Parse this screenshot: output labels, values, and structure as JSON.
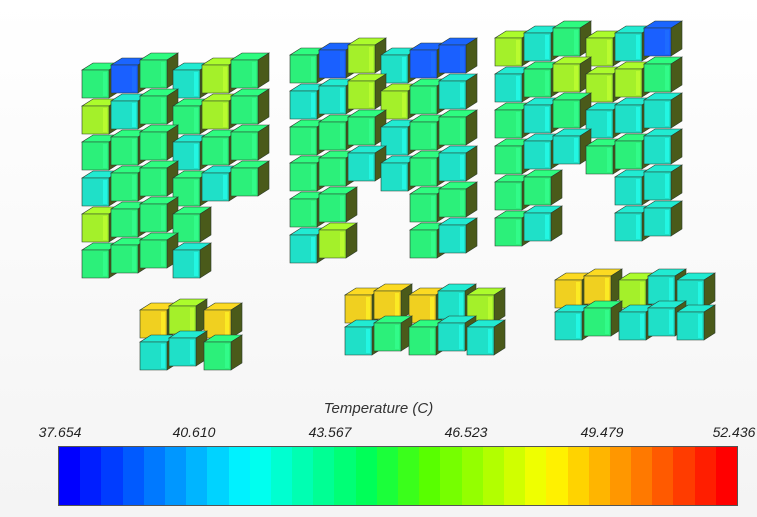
{
  "legend": {
    "title": "Temperature (C)",
    "min": 37.654,
    "max": 52.436,
    "ticks": [
      "37.654",
      "40.610",
      "43.567",
      "46.523",
      "49.479",
      "52.436"
    ],
    "colormap": [
      "#0000ff",
      "#0055ff",
      "#00aaff",
      "#00ffff",
      "#00ffaa",
      "#00ff55",
      "#55ff00",
      "#aaff00",
      "#ffff00",
      "#ffaa00",
      "#ff5500",
      "#ff0000"
    ]
  },
  "colors": {
    "cold": "#1a60ff",
    "cool": "#1fe0c8",
    "mid": "#2cf07a",
    "warm": "#a4f02a",
    "hot": "#f0d020"
  }
}
